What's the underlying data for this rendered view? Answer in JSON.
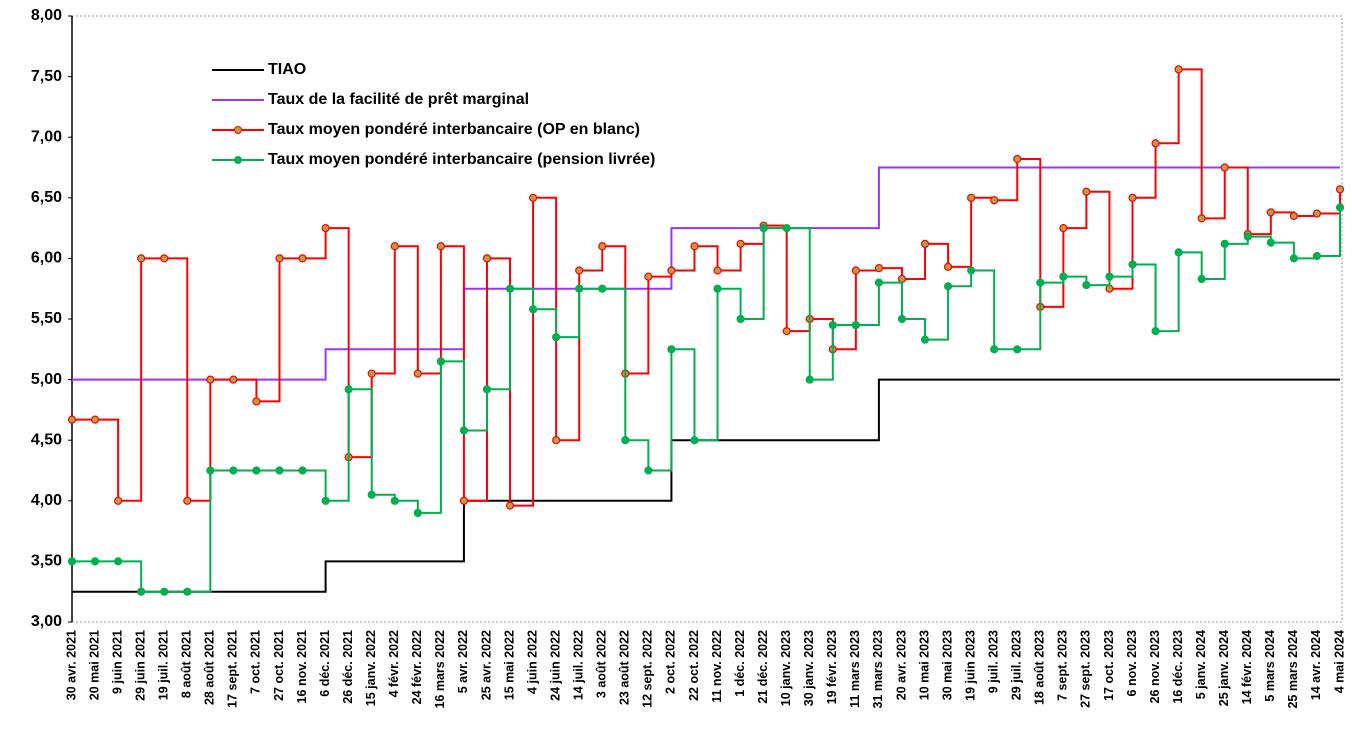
{
  "chart_data": {
    "type": "step-line",
    "legend": "upper left",
    "grid": false,
    "categories": [
      "30 avr. 2021",
      "20 mai 2021",
      "9 juin 2021",
      "29 juin 2021",
      "19 juil. 2021",
      "8 août 2021",
      "28 août 2021",
      "17 sept. 2021",
      "7 oct. 2021",
      "27 oct. 2021",
      "16 nov. 2021",
      "6 déc. 2021",
      "26 déc. 2021",
      "15 janv. 2022",
      "4 févr. 2022",
      "24 févr. 2022",
      "16 mars 2022",
      "5 avr. 2022",
      "25 avr. 2022",
      "15 mai 2022",
      "4 juin 2022",
      "24 juin 2022",
      "14 juil. 2022",
      "3 août 2022",
      "23 août 2022",
      "12 sept. 2022",
      "2 oct. 2022",
      "22 oct. 2022",
      "11 nov. 2022",
      "1 déc. 2022",
      "21 déc. 2022",
      "10 janv. 2023",
      "30 janv. 2023",
      "19 févr. 2023",
      "11 mars 2023",
      "31 mars 2023",
      "20 avr. 2023",
      "10 mai 2023",
      "30 mai 2023",
      "19 juin 2023",
      "9 juil. 2023",
      "29 juil. 2023",
      "18 août 2023",
      "7 sept. 2023",
      "27 sept. 2023",
      "17 oct. 2023",
      "6 nov. 2023",
      "26 nov. 2023",
      "16 déc. 2023",
      "5 janv. 2024",
      "25 janv. 2024",
      "14 févr. 2024",
      "5 mars 2024",
      "25 mars 2024",
      "14 avr. 2024",
      "4 mai 2024"
    ],
    "ylim": [
      3,
      8
    ],
    "yticks": [
      {
        "value": 3,
        "label": "3,00"
      },
      {
        "value": 3.5,
        "label": "3,50"
      },
      {
        "value": 4,
        "label": "4,00"
      },
      {
        "value": 4.5,
        "label": "4,50"
      },
      {
        "value": 5,
        "label": "5,00"
      },
      {
        "value": 5.5,
        "label": "5,50"
      },
      {
        "value": 6,
        "label": "6,00"
      },
      {
        "value": 6.5,
        "label": "6,50"
      },
      {
        "value": 7,
        "label": "7,00"
      },
      {
        "value": 7.5,
        "label": "7,50"
      },
      {
        "value": 8,
        "label": "8,00"
      }
    ],
    "series": [
      {
        "name": "TIAO",
        "color": "#000000",
        "markers": false,
        "values": [
          3.25,
          3.25,
          3.25,
          3.25,
          3.25,
          3.25,
          3.25,
          3.25,
          3.25,
          3.25,
          3.25,
          3.5,
          3.5,
          3.5,
          3.5,
          3.5,
          3.5,
          4,
          4,
          4,
          4,
          4,
          4,
          4,
          4,
          4,
          4.5,
          4.5,
          4.5,
          4.5,
          4.5,
          4.5,
          4.5,
          4.5,
          4.5,
          5,
          5,
          5,
          5,
          5,
          5,
          5,
          5,
          5,
          5,
          5,
          5,
          5,
          5,
          5,
          5,
          5,
          5,
          5,
          5,
          5
        ]
      },
      {
        "name": "Taux de la facilité  de prêt  marginal",
        "color": "#9933ff",
        "markers": false,
        "values": [
          5,
          5,
          5,
          5,
          5,
          5,
          5,
          5,
          5,
          5,
          5,
          5.25,
          5.25,
          5.25,
          5.25,
          5.25,
          5.25,
          5.75,
          5.75,
          5.75,
          5.75,
          5.75,
          5.75,
          5.75,
          5.75,
          5.75,
          6.25,
          6.25,
          6.25,
          6.25,
          6.25,
          6.25,
          6.25,
          6.25,
          6.25,
          6.75,
          6.75,
          6.75,
          6.75,
          6.75,
          6.75,
          6.75,
          6.75,
          6.75,
          6.75,
          6.75,
          6.75,
          6.75,
          6.75,
          6.75,
          6.75,
          6.75,
          6.75,
          6.75,
          6.75,
          6.75
        ]
      },
      {
        "name": "Taux moyen pondéré interbancaire (OP en blanc)",
        "color": "#ff0000",
        "markers": true,
        "marker_fill": "#b8a040",
        "values": [
          4.67,
          4.67,
          4,
          6,
          6,
          4,
          5,
          5,
          4.82,
          6,
          6,
          6.25,
          4.36,
          5.05,
          6.1,
          5.05,
          6.1,
          4,
          6,
          3.96,
          6.5,
          4.5,
          5.9,
          6.1,
          5.05,
          5.85,
          5.9,
          6.1,
          5.9,
          6.12,
          6.27,
          5.4,
          5.5,
          5.25,
          5.9,
          5.92,
          5.83,
          6.12,
          5.93,
          6.5,
          6.48,
          6.82,
          5.6,
          6.25,
          6.55,
          5.75,
          6.5,
          6.95,
          7.56,
          6.33,
          6.75,
          6.2,
          6.38,
          6.35,
          6.37,
          6.57
        ]
      },
      {
        "name": "Taux moyen pondéré interbancaire (pension livrée)",
        "color": "#00b050",
        "markers": true,
        "marker_fill": "#00b050",
        "values": [
          3.5,
          3.5,
          3.5,
          3.25,
          3.25,
          3.25,
          4.25,
          4.25,
          4.25,
          4.25,
          4.25,
          4,
          4.92,
          4.05,
          4,
          3.9,
          5.15,
          4.58,
          4.92,
          5.75,
          5.58,
          5.35,
          5.75,
          5.75,
          4.5,
          4.25,
          5.25,
          4.5,
          5.75,
          5.5,
          6.25,
          6.25,
          5,
          5.45,
          5.45,
          5.8,
          5.5,
          5.33,
          5.77,
          5.9,
          5.25,
          5.25,
          5.8,
          5.85,
          5.78,
          5.85,
          5.95,
          5.4,
          6.05,
          5.83,
          6.12,
          6.18,
          6.13,
          6,
          6.02,
          6.42
        ]
      }
    ]
  }
}
